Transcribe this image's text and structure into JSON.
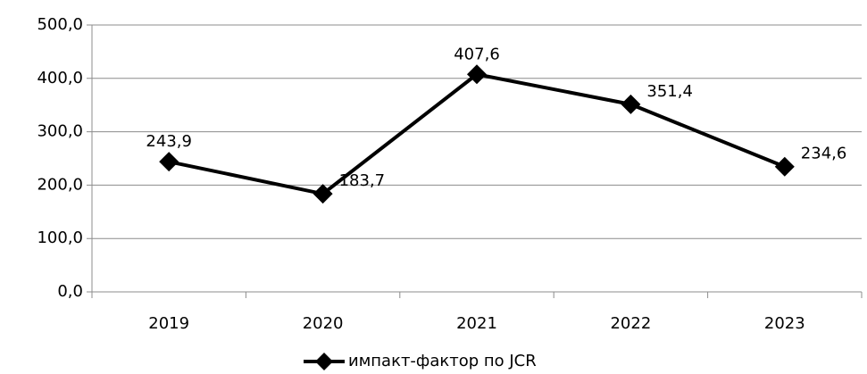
{
  "chart_data": {
    "type": "line",
    "categories": [
      "2019",
      "2020",
      "2021",
      "2022",
      "2023"
    ],
    "series": [
      {
        "name": "импакт-фактор по JCR",
        "color": "#000000",
        "values": [
          243.9,
          183.7,
          407.6,
          351.4,
          234.6
        ],
        "value_labels": [
          "243,9",
          "183,7",
          "407,6",
          "351,4",
          "234,6"
        ]
      }
    ],
    "ylim": [
      0,
      500
    ],
    "yticks": [
      {
        "value": 0,
        "label": "0,0"
      },
      {
        "value": 100,
        "label": "100,0"
      },
      {
        "value": 200,
        "label": "200,0"
      },
      {
        "value": 300,
        "label": "300,0"
      },
      {
        "value": 400,
        "label": "400,0"
      },
      {
        "value": 500,
        "label": "500,0"
      }
    ],
    "grid": true,
    "legend": "bottom"
  }
}
